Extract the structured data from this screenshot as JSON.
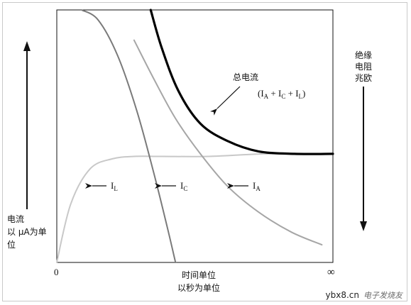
{
  "chart_data": {
    "type": "line",
    "x_axis": {
      "label_lines": [
        "时间单位",
        "以秒为单位"
      ],
      "min_label": "0",
      "max_label": "∞"
    },
    "y_axis_left": {
      "label_lines": [
        "电流",
        "以 μA为单",
        "位"
      ]
    },
    "y_axis_right": {
      "label_lines": [
        "绝缘",
        "电阻",
        "兆欧"
      ]
    },
    "xlim": [
      0,
      10
    ],
    "ylim": [
      0,
      10
    ],
    "grid": false,
    "series": [
      {
        "name": "总电流",
        "formula": "(IA + IC + IL)",
        "color": "#000000",
        "style": "thick",
        "x": [
          3.4,
          3.8,
          4.4,
          5.2,
          6.2,
          7.3,
          8.6,
          10.0
        ],
        "y": [
          10.0,
          8.5,
          6.8,
          5.5,
          4.8,
          4.4,
          4.3,
          4.3
        ]
      },
      {
        "name": "IC",
        "color": "#7a7a7a",
        "style": "normal",
        "x": [
          0.9,
          1.5,
          2.2,
          2.9,
          3.5,
          4.0,
          4.3
        ],
        "y": [
          10.0,
          9.6,
          8.2,
          6.0,
          3.6,
          1.4,
          0.0
        ]
      },
      {
        "name": "IA",
        "color": "#a6a6a6",
        "style": "normal",
        "x": [
          2.8,
          3.5,
          4.3,
          5.2,
          6.2,
          7.3,
          8.5,
          9.6
        ],
        "y": [
          8.8,
          7.3,
          5.7,
          4.3,
          3.0,
          2.0,
          1.2,
          0.7
        ]
      },
      {
        "name": "IL",
        "color": "#c8c8c8",
        "style": "normal",
        "x": [
          0.0,
          0.5,
          1.2,
          2.0,
          2.8,
          3.8,
          5.5,
          7.5,
          9.0
        ],
        "y": [
          0.0,
          2.3,
          3.7,
          4.1,
          4.2,
          4.2,
          4.2,
          4.3,
          4.3
        ]
      }
    ],
    "annotations": [
      {
        "text": "IL",
        "points_to": "IL"
      },
      {
        "text": "IC",
        "points_to": "IC"
      },
      {
        "text": "IA",
        "points_to": "IA"
      },
      {
        "text": "总电流",
        "points_to": "总电流"
      }
    ]
  },
  "watermark": {
    "text": "ybx8.cn",
    "text2": "电子发烧友"
  }
}
